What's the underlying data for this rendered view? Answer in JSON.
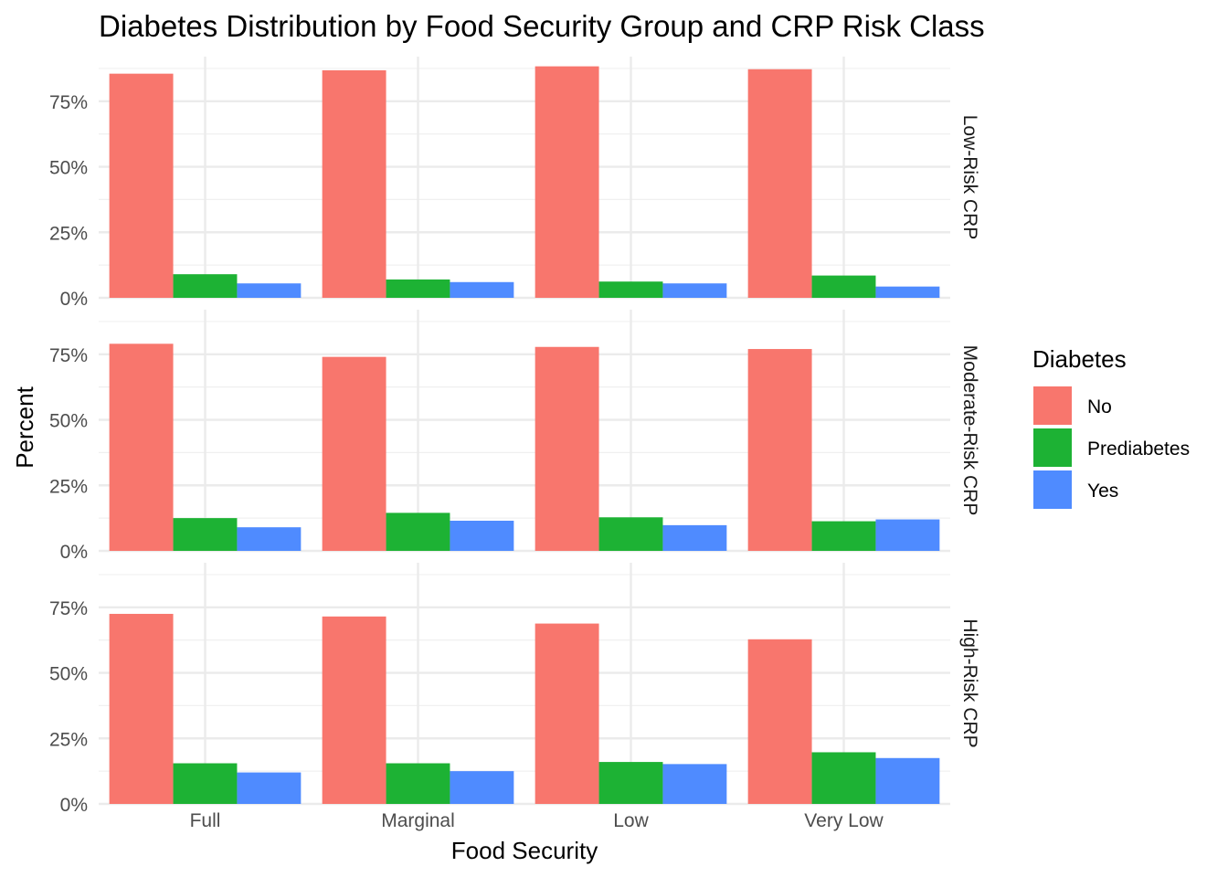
{
  "chart_data": {
    "type": "bar",
    "title": "Diabetes Distribution by Food Security Group and CRP Risk Class",
    "xlabel": "Food Security",
    "ylabel": "Percent",
    "categories": [
      "Full",
      "Marginal",
      "Low",
      "Very Low"
    ],
    "y_ticks": [
      "0%",
      "25%",
      "50%",
      "75%"
    ],
    "ylim": [
      0,
      92
    ],
    "legend": {
      "title": "Diabetes",
      "position": "right",
      "items": [
        {
          "name": "No",
          "color": "#F8766D"
        },
        {
          "name": "Prediabetes",
          "color": "#1DB234"
        },
        {
          "name": "Yes",
          "color": "#4F8BFF"
        }
      ]
    },
    "facets": [
      {
        "label": "Low-Risk CRP",
        "series": [
          {
            "name": "No",
            "values": [
              85.5,
              86.8,
              88.3,
              87.2
            ]
          },
          {
            "name": "Prediabetes",
            "values": [
              9.0,
              7.0,
              6.2,
              8.5
            ]
          },
          {
            "name": "Yes",
            "values": [
              5.5,
              6.0,
              5.5,
              4.3
            ]
          }
        ]
      },
      {
        "label": "Moderate-Risk CRP",
        "series": [
          {
            "name": "No",
            "values": [
              79.0,
              74.0,
              77.8,
              77.0
            ]
          },
          {
            "name": "Prediabetes",
            "values": [
              12.5,
              14.5,
              12.8,
              11.3
            ]
          },
          {
            "name": "Yes",
            "values": [
              9.0,
              11.5,
              9.8,
              12.0
            ]
          }
        ]
      },
      {
        "label": "High-Risk CRP",
        "series": [
          {
            "name": "No",
            "values": [
              72.5,
              71.5,
              68.8,
              62.8
            ]
          },
          {
            "name": "Prediabetes",
            "values": [
              15.5,
              15.5,
              16.0,
              19.7
            ]
          },
          {
            "name": "Yes",
            "values": [
              12.0,
              12.5,
              15.2,
              17.5
            ]
          }
        ]
      }
    ]
  }
}
